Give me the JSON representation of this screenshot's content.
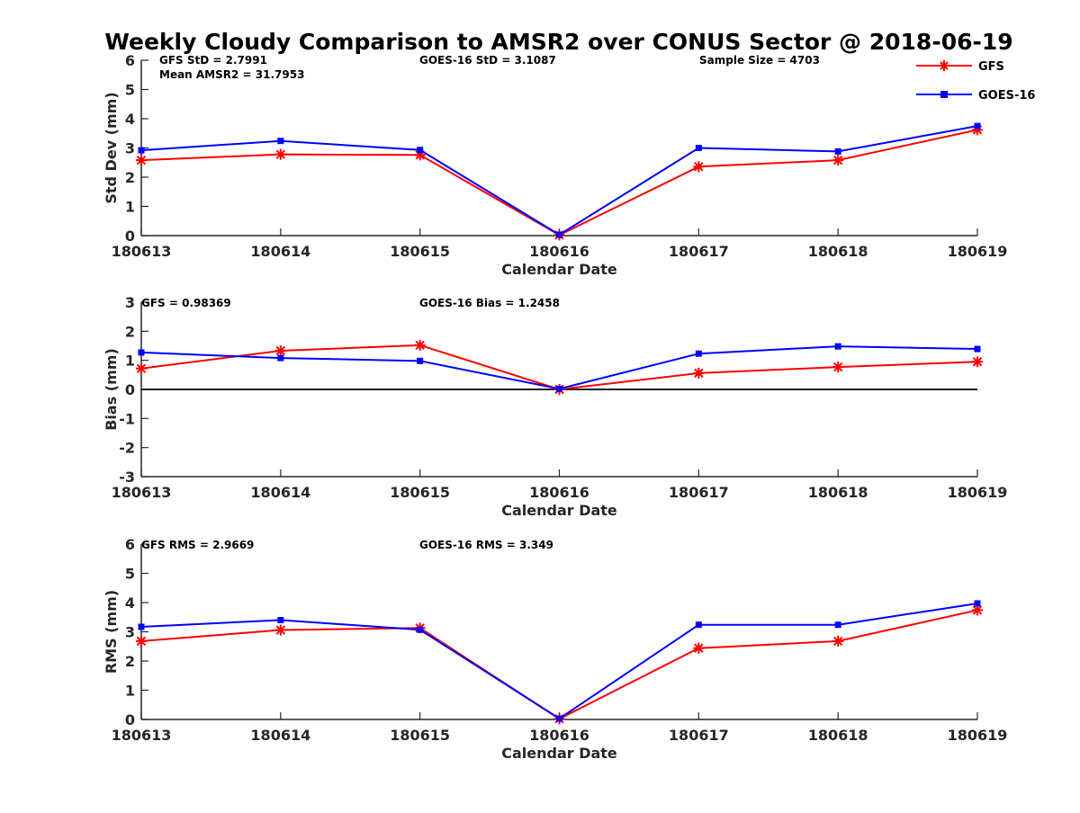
{
  "title": "Weekly Cloudy Comparison to AMSR2 over CONUS Sector @ 2018-06-19",
  "legend": [
    "GFS",
    "GOES-16"
  ],
  "colors": {
    "gfs": "#ff0000",
    "goes": "#0000ff",
    "axis": "#262626",
    "zero_line": "#000000"
  },
  "chart_data": [
    {
      "type": "line",
      "categories": [
        "180613",
        "180614",
        "180615",
        "180616",
        "180617",
        "180618",
        "180619"
      ],
      "xlabel": "Calendar Date",
      "ylabel": "Std Dev (mm)",
      "ylim": [
        0,
        6
      ],
      "yticks": [
        "0",
        "1",
        "2",
        "3",
        "4",
        "5",
        "6"
      ],
      "grid": false,
      "legend_position": "top-right",
      "annotations": [
        "GFS StD = 2.7991",
        "Mean AMSR2 = 31.7953",
        "GOES-16 StD = 3.1087",
        "Sample Size = 4703"
      ],
      "series": [
        {
          "name": "GFS",
          "values": [
            2.58,
            2.78,
            2.76,
            0.02,
            2.36,
            2.58,
            3.62
          ]
        },
        {
          "name": "GOES-16",
          "values": [
            2.92,
            3.24,
            2.93,
            0.03,
            3.0,
            2.88,
            3.75
          ]
        }
      ]
    },
    {
      "type": "line",
      "categories": [
        "180613",
        "180614",
        "180615",
        "180616",
        "180617",
        "180618",
        "180619"
      ],
      "xlabel": "Calendar Date",
      "ylabel": "Bias (mm)",
      "ylim": [
        -3,
        3
      ],
      "yticks": [
        "-3",
        "-2",
        "-1",
        "0",
        "1",
        "2",
        "3"
      ],
      "grid": false,
      "zero_line": true,
      "annotations": [
        "GFS = 0.98369",
        "GOES-16 Bias  = 1.2458"
      ],
      "series": [
        {
          "name": "GFS",
          "values": [
            0.72,
            1.33,
            1.52,
            0.0,
            0.56,
            0.77,
            0.95
          ]
        },
        {
          "name": "GOES-16",
          "values": [
            1.27,
            1.08,
            0.98,
            0.02,
            1.23,
            1.48,
            1.39
          ]
        }
      ]
    },
    {
      "type": "line",
      "categories": [
        "180613",
        "180614",
        "180615",
        "180616",
        "180617",
        "180618",
        "180619"
      ],
      "xlabel": "Calendar Date",
      "ylabel": "RMS (mm)",
      "ylim": [
        0,
        6
      ],
      "yticks": [
        "0",
        "1",
        "2",
        "3",
        "4",
        "5",
        "6"
      ],
      "grid": false,
      "annotations": [
        "GFS RMS = 2.9669",
        "GOES-16 RMS = 3.349"
      ],
      "series": [
        {
          "name": "GFS",
          "values": [
            2.68,
            3.06,
            3.13,
            0.02,
            2.44,
            2.68,
            3.74
          ]
        },
        {
          "name": "GOES-16",
          "values": [
            3.17,
            3.4,
            3.07,
            0.03,
            3.24,
            3.24,
            3.97
          ]
        }
      ]
    }
  ]
}
